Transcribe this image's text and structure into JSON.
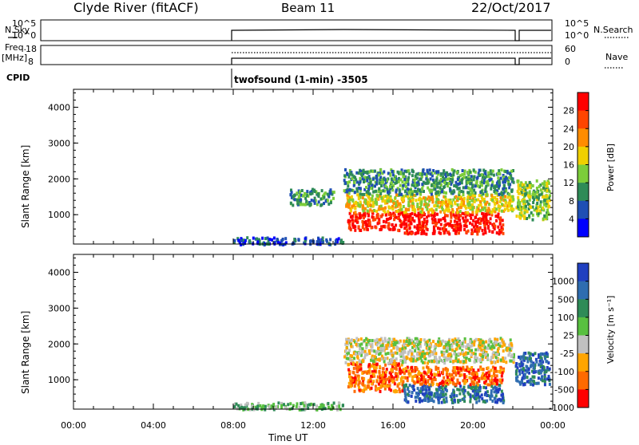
{
  "header": {
    "radar": "Clyde River (fitACF)",
    "beam": "Beam 11",
    "date": "22/Oct/2017"
  },
  "noise_panel": {
    "left_label": "N.Sky",
    "right_label": "N.Search",
    "ticks_left": [
      "10^5",
      "10^0"
    ],
    "ticks_right": [
      "10^5",
      "10^0"
    ]
  },
  "freq_panel": {
    "left_label_1": "Freq.",
    "left_label_2": "[MHz]",
    "right_label": "Nave",
    "ticks_left": [
      "18",
      "8"
    ],
    "ticks_right": [
      "60",
      "0"
    ]
  },
  "cpid": {
    "label": "CPID",
    "value": "twofsound (1-min) -3505"
  },
  "chart_data": [
    {
      "type": "heatmap",
      "title": "Power",
      "xlabel": "Time UT",
      "ylabel": "Slant Range [km]",
      "x_range_hours": [
        0,
        24
      ],
      "y_range_km": [
        180,
        4500
      ],
      "colorbar_label": "Power [dB]",
      "colorbar_ticks": [
        "28",
        "24",
        "20",
        "16",
        "12",
        "8",
        "4"
      ],
      "colors": [
        "#0000ff",
        "#1f4fb4",
        "#2e8b57",
        "#7ccd3a",
        "#f0d000",
        "#ff8c00",
        "#ff4500",
        "#ff0000"
      ],
      "approx_regions": [
        {
          "x": [
            8.0,
            13.5
          ],
          "y": [
            200,
            400
          ],
          "value_db": 4
        },
        {
          "x": [
            10.8,
            13.0
          ],
          "y": [
            1300,
            1750
          ],
          "value_db": 6
        },
        {
          "x": [
            13.7,
            16.5
          ],
          "y": [
            600,
            1100
          ],
          "value_db": 28
        },
        {
          "x": [
            16.5,
            21.5
          ],
          "y": [
            500,
            1100
          ],
          "value_db": 28
        },
        {
          "x": [
            13.5,
            22.0
          ],
          "y": [
            1100,
            1600
          ],
          "value_db": 16
        },
        {
          "x": [
            13.5,
            22.0
          ],
          "y": [
            1600,
            2300
          ],
          "value_db": 8
        },
        {
          "x": [
            22.1,
            23.8
          ],
          "y": [
            900,
            2000
          ],
          "value_db": 12
        }
      ]
    },
    {
      "type": "heatmap",
      "title": "Velocity",
      "xlabel": "Time UT",
      "ylabel": "Slant Range [km]",
      "x_range_hours": [
        0,
        24
      ],
      "y_range_km": [
        180,
        4500
      ],
      "colorbar_label": "Velocity [m s⁻¹]",
      "colorbar_ticks": [
        "1000",
        "500",
        "100",
        "25",
        "-25",
        "-100",
        "-500",
        "-1000"
      ],
      "colors": [
        "#2040c0",
        "#2f6db0",
        "#2e8b57",
        "#58c040",
        "#c0c0c0",
        "#ffa500",
        "#ff6a00",
        "#ff0000"
      ],
      "approx_regions": [
        {
          "x": [
            8.0,
            13.5
          ],
          "y": [
            200,
            400
          ],
          "value_ms": 50
        },
        {
          "x": [
            13.7,
            16.5
          ],
          "y": [
            700,
            1500
          ],
          "value_ms": -300
        },
        {
          "x": [
            16.5,
            21.5
          ],
          "y": [
            400,
            900
          ],
          "value_ms": 800
        },
        {
          "x": [
            16.5,
            21.5
          ],
          "y": [
            900,
            1400
          ],
          "value_ms": -300
        },
        {
          "x": [
            13.5,
            22.0
          ],
          "y": [
            1500,
            2200
          ],
          "value_ms": 0
        },
        {
          "x": [
            22.1,
            23.8
          ],
          "y": [
            900,
            1800
          ],
          "value_ms": 800
        }
      ]
    }
  ],
  "x_ticks": [
    "00:00",
    "04:00",
    "08:00",
    "12:00",
    "16:00",
    "20:00",
    "00:00"
  ],
  "y_ticks": [
    "4000",
    "3000",
    "2000",
    "1000"
  ]
}
